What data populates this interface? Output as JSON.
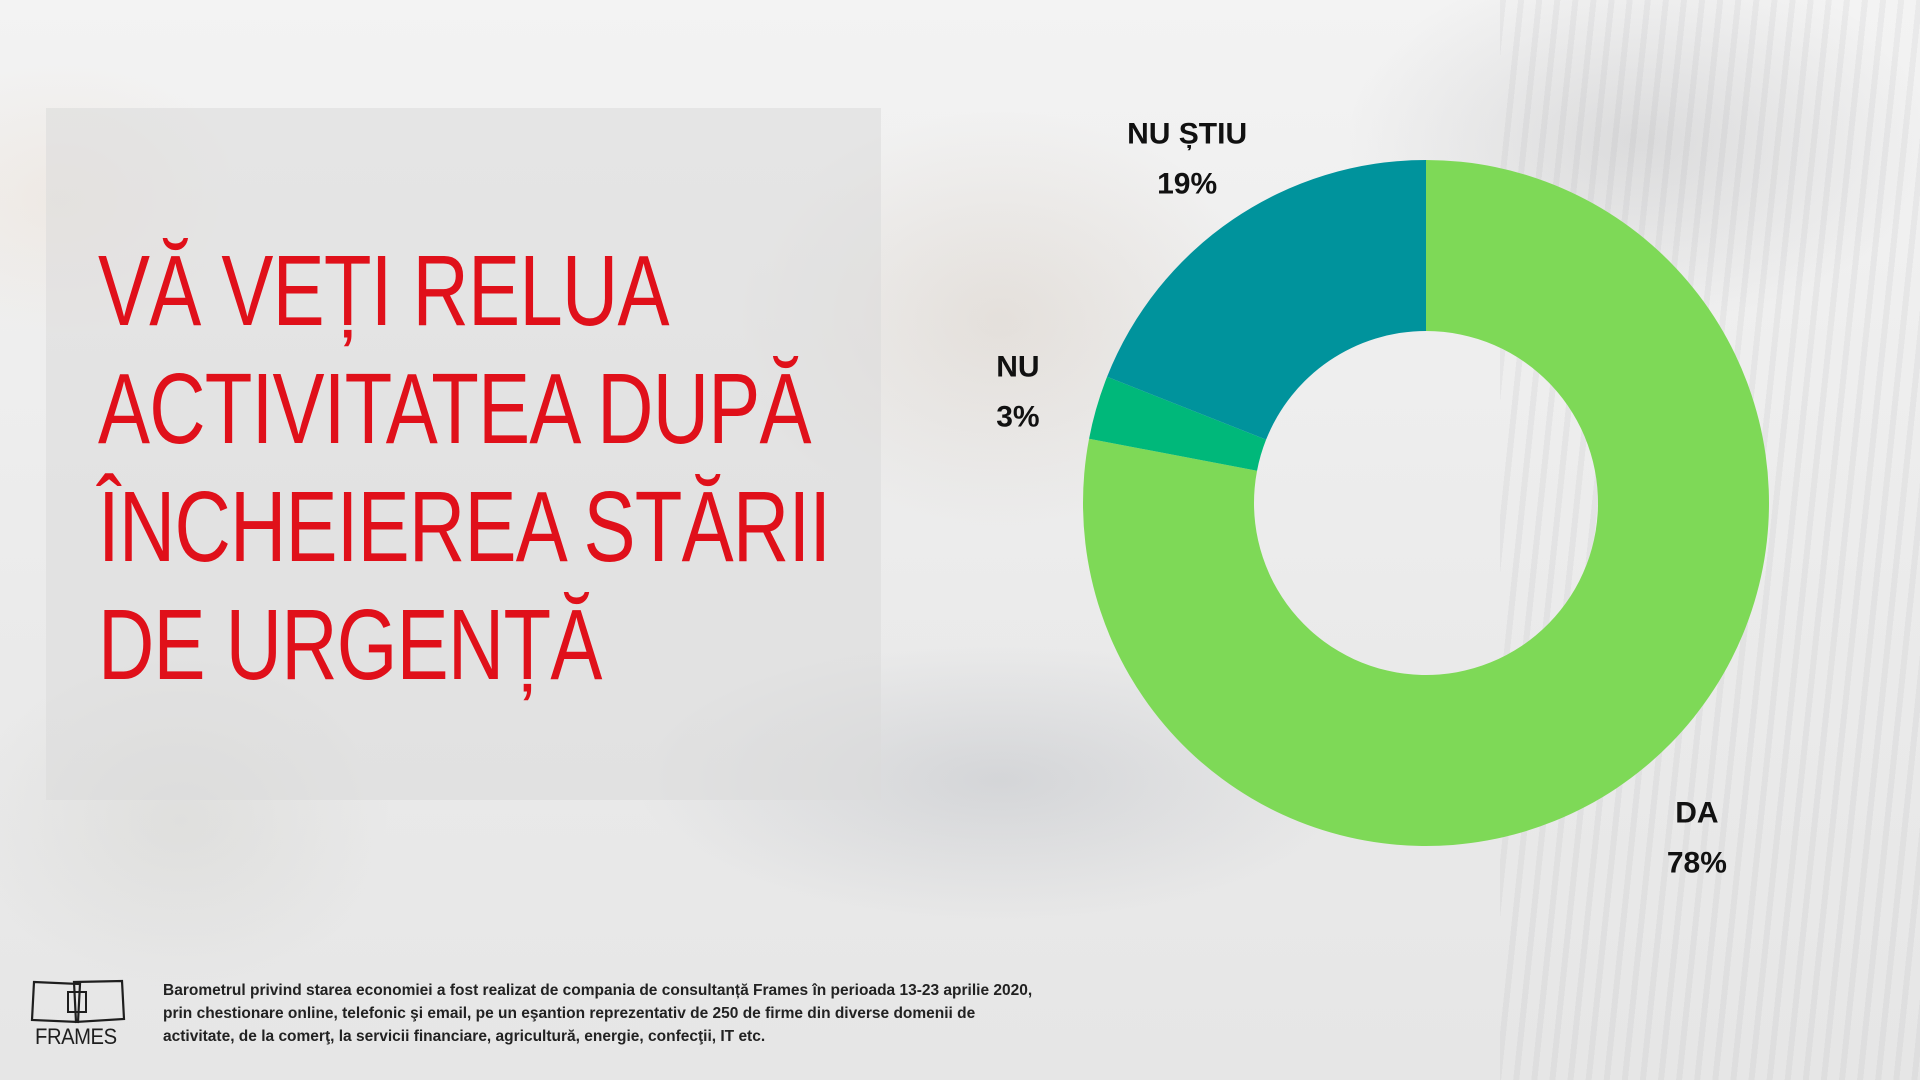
{
  "title": "VĂ VEȚI RELUA ACTIVITATEA DUPĂ ÎNCHEIEREA STĂRII DE URGENȚĂ",
  "footnote": "Barometrul privind starea economiei a fost realizat de compania de consultanță Frames în perioada 13-23 aprilie 2020,\n prin chestionare online, telefonic şi email, pe un eşantion reprezentativ de 250 de firme din diverse domenii de\nactivitate, de la comerţ, la servicii financiare, agricultură, energie, confecţii, IT etc.",
  "logo": {
    "text": "FRAMES",
    "icon": "frames-logo-icon"
  },
  "colors": {
    "title": "#e0101a",
    "accent_da": "#7ed957",
    "accent_nu": "#00b87a",
    "accent_nu_stiu": "#00939c"
  },
  "chart_data": {
    "type": "pie",
    "variant": "donut",
    "slices": [
      {
        "label": "DA",
        "value": 78,
        "value_label": "78%",
        "color": "#7ed957"
      },
      {
        "label": "NU",
        "value": 3,
        "value_label": "3%",
        "color": "#00b87a"
      },
      {
        "label": "NU ȘTIU",
        "value": 19,
        "value_label": "19%",
        "color": "#00939c"
      }
    ],
    "start": "12 o'clock",
    "direction": "clockwise",
    "legend": "none",
    "labels": "outside"
  }
}
